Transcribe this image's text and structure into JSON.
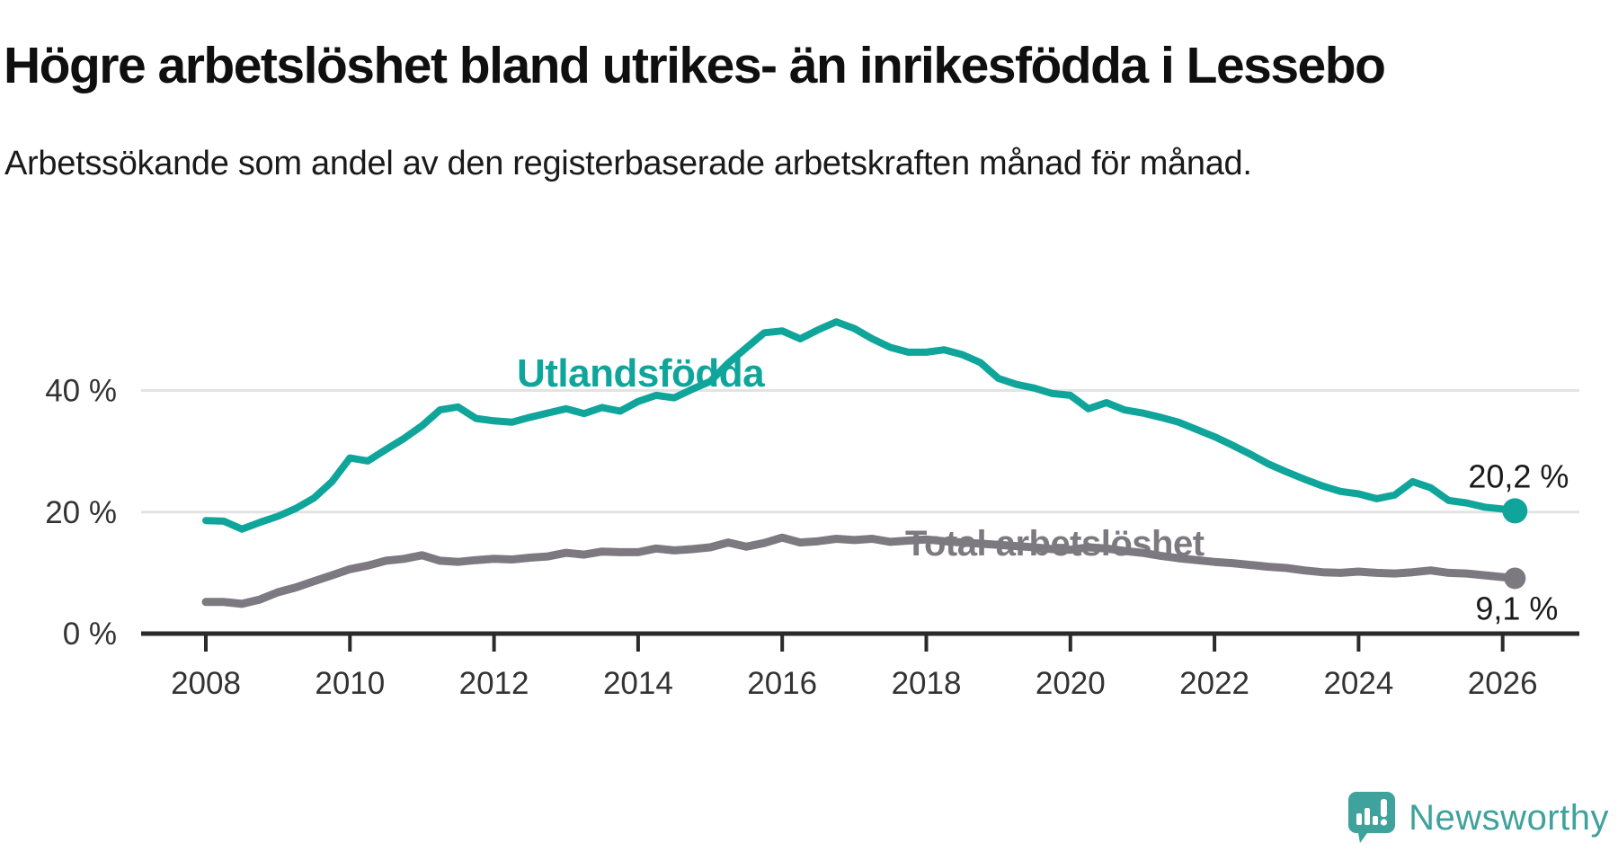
{
  "header": {
    "title": "Högre arbetslöshet bland utrikes- än inrikesfödda i Lessebo",
    "subtitle": "Arbetssökande som andel av den registerbaserade arbetskraften månad för månad."
  },
  "footer": {
    "brand": "Newsworthy",
    "brand_color": "#3fa29c"
  },
  "colors": {
    "series_foreign": "#0fa59b",
    "series_total": "#7c7a80",
    "grid": "#e3e3e3",
    "axis": "#2a2a2a",
    "tick_label": "#333333",
    "end_label": "#1a1a1a"
  },
  "chart_data": {
    "type": "line",
    "title": "Högre arbetslöshet bland utrikes- än inrikesfödda i Lessebo",
    "subtitle": "Arbetssökande som andel av den registerbaserade arbetskraften månad för månad.",
    "unit": "%",
    "grid": "horizontal-only",
    "legend_position": "inline-labels",
    "x_axis": {
      "ticks": [
        2008,
        2010,
        2012,
        2014,
        2016,
        2018,
        2020,
        2022,
        2024,
        2026
      ],
      "tick_labels": [
        "2008",
        "2010",
        "2012",
        "2014",
        "2016",
        "2018",
        "2020",
        "2022",
        "2024",
        "2026"
      ]
    },
    "y_axis": {
      "ticks": [
        0,
        20,
        40
      ],
      "tick_labels": [
        "0 %",
        "20 %",
        "40 %"
      ],
      "range": [
        0,
        55
      ]
    },
    "series": [
      {
        "name": "Utlandsfödda",
        "color": "#0fa59b",
        "end_label": "20,2 %",
        "end_value": 20.2,
        "x": [
          2008.0,
          2008.25,
          2008.5,
          2008.75,
          2009.0,
          2009.25,
          2009.5,
          2009.75,
          2010.0,
          2010.25,
          2010.5,
          2010.75,
          2011.0,
          2011.25,
          2011.5,
          2011.75,
          2012.0,
          2012.25,
          2012.5,
          2012.75,
          2013.0,
          2013.25,
          2013.5,
          2013.75,
          2014.0,
          2014.25,
          2014.5,
          2014.75,
          2015.0,
          2015.25,
          2015.5,
          2015.75,
          2016.0,
          2016.25,
          2016.5,
          2016.75,
          2017.0,
          2017.25,
          2017.5,
          2017.75,
          2018.0,
          2018.25,
          2018.5,
          2018.75,
          2019.0,
          2019.25,
          2019.5,
          2019.75,
          2020.0,
          2020.25,
          2020.5,
          2020.75,
          2021.0,
          2021.25,
          2021.5,
          2021.75,
          2022.0,
          2022.25,
          2022.5,
          2022.75,
          2023.0,
          2023.25,
          2023.5,
          2023.75,
          2024.0,
          2024.25,
          2024.5,
          2024.75,
          2025.0,
          2025.25,
          2025.5,
          2025.75,
          2026.0,
          2026.17
        ],
        "values": [
          18.6,
          18.5,
          17.2,
          18.3,
          19.3,
          20.6,
          22.3,
          25.0,
          28.9,
          28.4,
          30.3,
          32.1,
          34.2,
          36.8,
          37.3,
          35.4,
          35.0,
          34.8,
          35.6,
          36.3,
          37.0,
          36.2,
          37.2,
          36.6,
          38.2,
          39.2,
          38.8,
          40.2,
          41.5,
          44.5,
          47.0,
          49.5,
          49.8,
          48.5,
          50.0,
          51.3,
          50.2,
          48.5,
          47.1,
          46.3,
          46.3,
          46.7,
          45.9,
          44.6,
          42.0,
          41.0,
          40.4,
          39.5,
          39.2,
          37.0,
          38.0,
          36.8,
          36.3,
          35.6,
          34.8,
          33.6,
          32.4,
          31.0,
          29.5,
          27.9,
          26.6,
          25.4,
          24.3,
          23.4,
          23.0,
          22.2,
          22.8,
          25.0,
          24.0,
          21.9,
          21.5,
          20.8,
          20.5,
          20.2
        ]
      },
      {
        "name": "Total arbetslöshet",
        "color": "#7c7a80",
        "end_label": "9,1 %",
        "end_value": 9.1,
        "x": [
          2008.0,
          2008.25,
          2008.5,
          2008.75,
          2009.0,
          2009.25,
          2009.5,
          2009.75,
          2010.0,
          2010.25,
          2010.5,
          2010.75,
          2011.0,
          2011.25,
          2011.5,
          2011.75,
          2012.0,
          2012.25,
          2012.5,
          2012.75,
          2013.0,
          2013.25,
          2013.5,
          2013.75,
          2014.0,
          2014.25,
          2014.5,
          2014.75,
          2015.0,
          2015.25,
          2015.5,
          2015.75,
          2016.0,
          2016.25,
          2016.5,
          2016.75,
          2017.0,
          2017.25,
          2017.5,
          2017.75,
          2018.0,
          2018.25,
          2018.5,
          2018.75,
          2019.0,
          2019.25,
          2019.5,
          2019.75,
          2020.0,
          2020.25,
          2020.5,
          2020.75,
          2021.0,
          2021.25,
          2021.5,
          2021.75,
          2022.0,
          2022.25,
          2022.5,
          2022.75,
          2023.0,
          2023.25,
          2023.5,
          2023.75,
          2024.0,
          2024.25,
          2024.5,
          2024.75,
          2025.0,
          2025.25,
          2025.5,
          2025.75,
          2026.0,
          2026.17
        ],
        "values": [
          5.2,
          5.2,
          4.9,
          5.6,
          6.8,
          7.6,
          8.6,
          9.6,
          10.6,
          11.2,
          12.0,
          12.3,
          12.9,
          12.0,
          11.8,
          12.1,
          12.3,
          12.2,
          12.5,
          12.7,
          13.3,
          13.0,
          13.5,
          13.4,
          13.4,
          14.0,
          13.7,
          13.9,
          14.2,
          15.0,
          14.3,
          14.9,
          15.8,
          15.0,
          15.2,
          15.6,
          15.4,
          15.6,
          15.1,
          15.3,
          15.5,
          15.2,
          15.0,
          14.8,
          14.6,
          14.4,
          14.2,
          13.9,
          13.8,
          14.2,
          14.0,
          13.6,
          13.3,
          12.8,
          12.4,
          12.1,
          11.8,
          11.6,
          11.3,
          11.0,
          10.8,
          10.4,
          10.1,
          10.0,
          10.2,
          10.0,
          9.9,
          10.1,
          10.4,
          10.0,
          9.9,
          9.6,
          9.3,
          9.1
        ]
      }
    ]
  }
}
